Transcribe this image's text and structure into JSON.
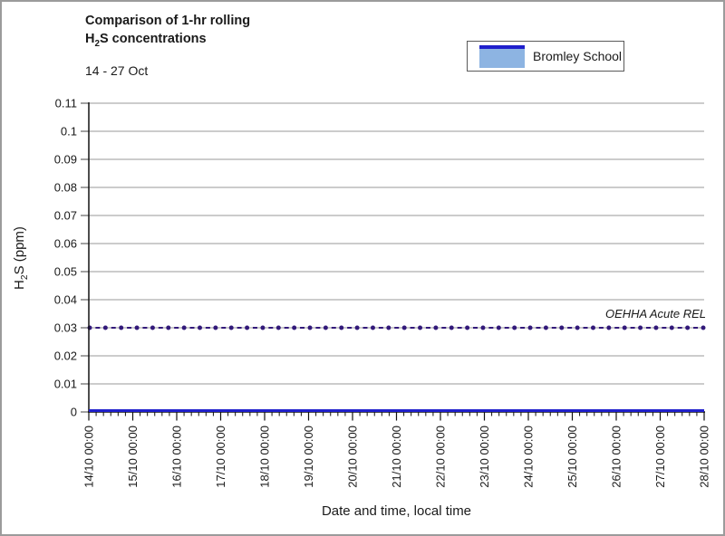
{
  "header": {
    "title_line1": "Comparison of 1-hr rolling",
    "title_line2_prefix": "H",
    "title_line2_sub": "2",
    "title_line2_suffix": "S concentrations",
    "subtitle": "14 - 27 Oct"
  },
  "legend": {
    "label": "Bromley School",
    "swatch_fill": "#8DB4E2",
    "swatch_line": "#1F1FCC"
  },
  "annotation": {
    "text": "OEHHA Acute REL"
  },
  "axes": {
    "y_title_prefix": "H",
    "y_title_sub": "2",
    "y_title_suffix": "S (ppm)",
    "x_title": "Date and time, local time"
  },
  "colors": {
    "series_line": "#1F1FCC",
    "series_fill": "#8DB4E2",
    "rel_line": "#32197A",
    "gridline": "#9a9a9a",
    "axis": "#111111",
    "tick": "#444444",
    "text": "#1a1a1a",
    "figure_border": "#9b9b9b"
  },
  "chart_data": {
    "type": "line",
    "title": "Comparison of 1-hr rolling H2S concentrations",
    "subtitle": "14 - 27 Oct",
    "xlabel": "Date and time, local time",
    "ylabel": "H2S (ppm)",
    "ylim": [
      0,
      0.11
    ],
    "y_ticks": [
      "0",
      "0.01",
      "0.02",
      "0.03",
      "0.04",
      "0.05",
      "0.06",
      "0.07",
      "0.08",
      "0.09",
      "0.1",
      "0.11"
    ],
    "x_ticks": [
      "14/10 00:00",
      "15/10 00:00",
      "16/10 00:00",
      "17/10 00:00",
      "18/10 00:00",
      "19/10 00:00",
      "20/10 00:00",
      "21/10 00:00",
      "22/10 00:00",
      "23/10 00:00",
      "24/10 00:00",
      "25/10 00:00",
      "26/10 00:00",
      "27/10 00:00",
      "28/10 00:00"
    ],
    "x_minor_divisions_per_day": 6,
    "grid": "horizontal",
    "legend_position": "top-right",
    "series": [
      {
        "name": "Bromley School",
        "type": "area",
        "line_color": "#1F1FCC",
        "fill_color": "#8DB4E2",
        "constant_value": 0,
        "note": "flat at 0 ppm across entire 14 - 27 Oct period"
      },
      {
        "name": "OEHHA Acute REL",
        "type": "reference-line",
        "style": "dashed-with-round-markers",
        "line_color": "#32197A",
        "constant_value": 0.03,
        "marker_count": 40
      }
    ]
  }
}
